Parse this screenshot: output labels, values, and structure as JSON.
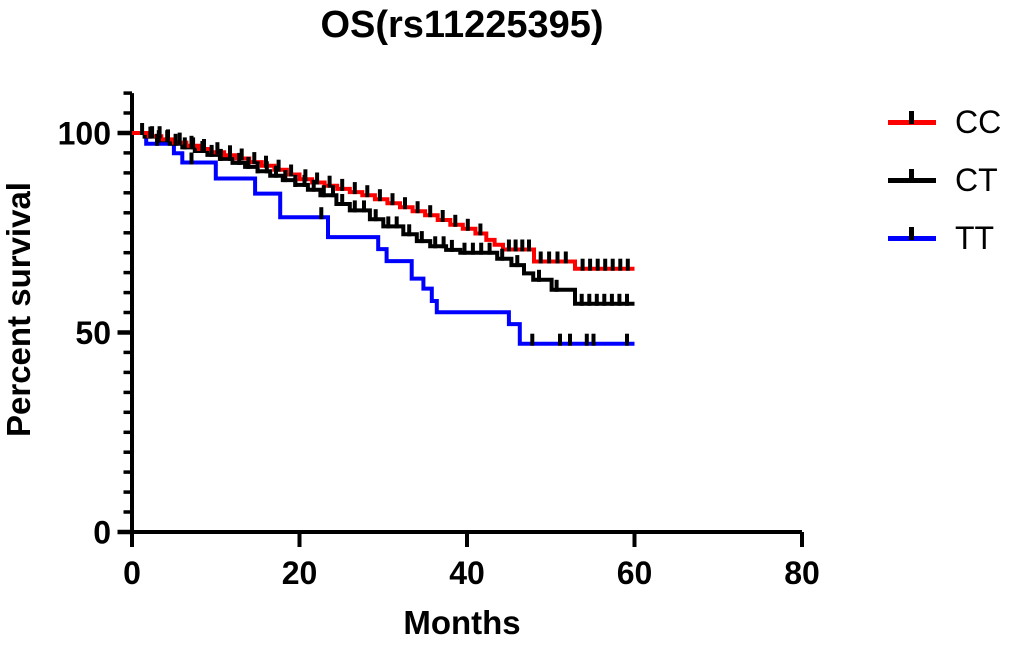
{
  "title": "OS(rs11225395)",
  "chart_data": {
    "type": "line",
    "subtype": "kaplan-meier-step",
    "title": "OS(rs11225395)",
    "xlabel": "Months",
    "ylabel": "Percent survival",
    "xlim": [
      0,
      80
    ],
    "ylim": [
      0,
      110
    ],
    "x_ticks": [
      0,
      20,
      40,
      60,
      80
    ],
    "y_major_ticks": [
      0,
      50,
      100
    ],
    "y_minor_tick_interval": 5,
    "grid": false,
    "legend_position": "right",
    "censor_tick_color": "#000000",
    "axis_color": "#000000",
    "series": [
      {
        "name": "CC",
        "color": "#ff0000",
        "end_month": 60,
        "end_percent": 66,
        "steps": [
          [
            0,
            100
          ],
          [
            2,
            99.2
          ],
          [
            3.5,
            98.4
          ],
          [
            5,
            97.6
          ],
          [
            6.5,
            96.8
          ],
          [
            8,
            96
          ],
          [
            9.5,
            95.2
          ],
          [
            11,
            94.4
          ],
          [
            12.5,
            93.6
          ],
          [
            14,
            92.7
          ],
          [
            15.5,
            91.8
          ],
          [
            17,
            90.8
          ],
          [
            18.5,
            89.6
          ],
          [
            20,
            88.4
          ],
          [
            21.5,
            87.6
          ],
          [
            23,
            86.8
          ],
          [
            24.5,
            86
          ],
          [
            26,
            85.2
          ],
          [
            27.5,
            84.4
          ],
          [
            29,
            83.4
          ],
          [
            30.5,
            82.4
          ],
          [
            32,
            81.4
          ],
          [
            33.5,
            80.4
          ],
          [
            35,
            79.4
          ],
          [
            36.5,
            78.2
          ],
          [
            38,
            77
          ],
          [
            39.5,
            76
          ],
          [
            41,
            74.8
          ],
          [
            42.3,
            73.2
          ],
          [
            43.3,
            72
          ],
          [
            44.3,
            70.8
          ],
          [
            48,
            67.8
          ],
          [
            52.9,
            66
          ]
        ],
        "censor_ticks": [
          2.4,
          3.3,
          4.3,
          5.7,
          7.1,
          8.6,
          10.2,
          11.7,
          13.1,
          14.6,
          16,
          17.5,
          19,
          20.7,
          22.1,
          23.6,
          25.1,
          26.6,
          28.1,
          29.6,
          31.1,
          32.6,
          34.1,
          35.6,
          37.1,
          38.6,
          40.1,
          41.6,
          45,
          45.8,
          46.6,
          47.4,
          48.8,
          49.8,
          50.8,
          51.8,
          53.8,
          54.7,
          55.6,
          56.5,
          57.4,
          58.3,
          59.2
        ]
      },
      {
        "name": "CT",
        "color": "#000000",
        "end_month": 60,
        "end_percent": 57,
        "steps": [
          [
            0,
            100
          ],
          [
            1.5,
            99.1
          ],
          [
            3,
            98.2
          ],
          [
            4.5,
            97.3
          ],
          [
            6,
            96.4
          ],
          [
            7.5,
            95.5
          ],
          [
            9,
            94.5
          ],
          [
            10.5,
            93.5
          ],
          [
            12,
            92.5
          ],
          [
            13.5,
            91.5
          ],
          [
            15,
            90.4
          ],
          [
            16.5,
            89.3
          ],
          [
            18,
            88.2
          ],
          [
            19.5,
            87
          ],
          [
            21,
            85.8
          ],
          [
            22.5,
            84.4
          ],
          [
            24.4,
            82.2
          ],
          [
            26,
            80.6
          ],
          [
            28.4,
            78.4
          ],
          [
            30,
            76.6
          ],
          [
            32.4,
            74.6
          ],
          [
            34,
            72.9
          ],
          [
            35.6,
            71.6
          ],
          [
            37.5,
            70.7
          ],
          [
            39.2,
            70
          ],
          [
            43.6,
            68.5
          ],
          [
            45.3,
            66.9
          ],
          [
            46.8,
            64.8
          ],
          [
            47.9,
            63.2
          ],
          [
            50.1,
            60.7
          ],
          [
            52.9,
            57.2
          ]
        ],
        "censor_ticks": [
          1.2,
          2.2,
          3.2,
          4.2,
          5.2,
          6.3,
          7.3,
          8.4,
          9.5,
          10.6,
          11.7,
          12.8,
          13.9,
          15,
          16.1,
          17.2,
          18.3,
          19.5,
          20.6,
          21.7,
          22.9,
          24,
          25.1,
          26.6,
          27.7,
          29.1,
          30.6,
          31.6,
          33.1,
          34.6,
          36.2,
          37.2,
          38.2,
          39.7,
          40.7,
          41.7,
          42.7,
          44.2,
          46,
          48.6,
          50.7,
          53.7,
          54.6,
          55.5,
          56.4,
          57.3,
          58.2,
          59.1
        ]
      },
      {
        "name": "TT",
        "color": "#0000ff",
        "end_month": 60,
        "end_percent": 47,
        "steps": [
          [
            0,
            100
          ],
          [
            1.7,
            97.3
          ],
          [
            5,
            94.9
          ],
          [
            6,
            92.6
          ],
          [
            10,
            88.6
          ],
          [
            14.7,
            84.8
          ],
          [
            17.7,
            78.9
          ],
          [
            23.4,
            73.9
          ],
          [
            29.4,
            70.9
          ],
          [
            30.4,
            67.9
          ],
          [
            33.4,
            63.5
          ],
          [
            34.8,
            61
          ],
          [
            35.8,
            57.9
          ],
          [
            36.4,
            55.1
          ],
          [
            45,
            52.1
          ],
          [
            46.3,
            47.2
          ]
        ],
        "censor_ticks": [
          3,
          7.1,
          22.6,
          47.8,
          51.1,
          52.3,
          54.3,
          55.1,
          59.1
        ]
      }
    ]
  }
}
